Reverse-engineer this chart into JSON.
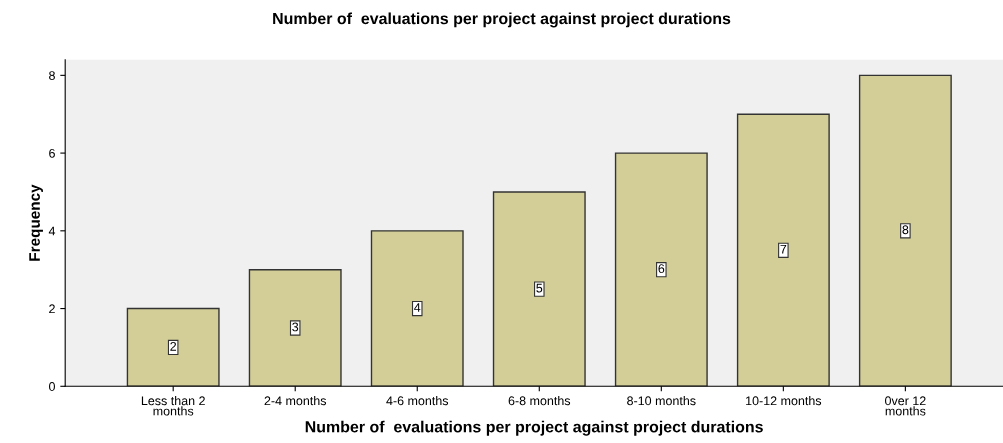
{
  "chart_data": {
    "type": "bar",
    "title": "Number of  evaluations per project against project durations",
    "xlabel": "Number of  evaluations per project against project durations",
    "ylabel": "Frequency",
    "categories": [
      "Less than 2\nmonths",
      "2-4 months",
      "4-6 months",
      "6-8 months",
      "8-10 months",
      "10-12 months",
      "0ver 12\nmonths"
    ],
    "values": [
      2,
      3,
      4,
      5,
      6,
      7,
      8
    ],
    "color": "#d3ce97",
    "ylim": [
      0,
      8.4
    ],
    "yticks": [
      0,
      2,
      4,
      6,
      8
    ],
    "grid": false,
    "data_labels": true
  }
}
